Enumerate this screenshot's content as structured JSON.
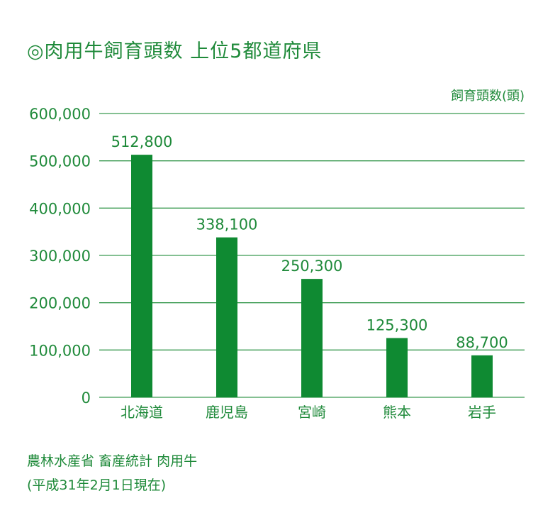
{
  "title": "◎肉用牛飼育頭数 上位5都道府県",
  "source": {
    "line1": "農林水産省 畜産統計 肉用牛",
    "line2": "(平成31年2月1日現在)"
  },
  "colors": {
    "bar": "#0f8a32",
    "text": "#1f8a3a",
    "grid": "#3a9a50"
  },
  "chart_data": {
    "type": "bar",
    "categories": [
      "北海道",
      "鹿児島",
      "宮崎",
      "熊本",
      "岩手"
    ],
    "values": [
      512800,
      338100,
      250300,
      125300,
      88700
    ],
    "value_labels": [
      "512,800",
      "338,100",
      "250,300",
      "125,300",
      "88,700"
    ],
    "ylabel": "飼育頭数(頭)",
    "ylim": [
      0,
      600000
    ],
    "yticks": [
      0,
      100000,
      200000,
      300000,
      400000,
      500000,
      600000
    ],
    "ytick_labels": [
      "0",
      "100,000",
      "200,000",
      "300,000",
      "400,000",
      "500,000",
      "600,000"
    ],
    "grid": true
  }
}
